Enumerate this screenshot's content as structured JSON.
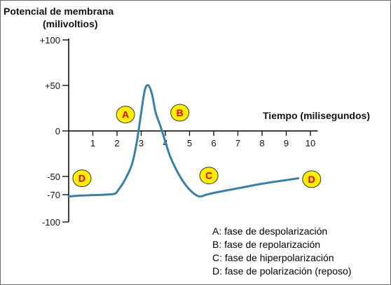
{
  "chart_data": {
    "type": "line",
    "ylabel_line1": "Potencial de membrana",
    "ylabel_line2": "(milivoltios)",
    "xlabel": "Tiempo (milisegundos)",
    "y_ticks": [
      {
        "value": 100,
        "label": "+100"
      },
      {
        "value": 50,
        "label": "+50"
      },
      {
        "value": 0,
        "label": "0"
      },
      {
        "value": -50,
        "label": "-50"
      },
      {
        "value": -70,
        "label": "-70"
      },
      {
        "value": -100,
        "label": "-100"
      }
    ],
    "x_ticks": [
      1,
      2,
      3,
      4,
      5,
      6,
      7,
      8,
      9,
      10
    ],
    "xlim": [
      0,
      10.3
    ],
    "ylim": [
      -100,
      100
    ],
    "grid": false,
    "series": [
      {
        "color": "#3a7fa4",
        "x": [
          0,
          0.5,
          1,
          1.5,
          1.9,
          2.05,
          2.3,
          2.6,
          2.8,
          3.0,
          3.15,
          3.3,
          3.45,
          3.6,
          3.8,
          4.0,
          4.2,
          4.5,
          4.8,
          5.1,
          5.4,
          5.7,
          6.2,
          7,
          8,
          9,
          9.5
        ],
        "y": [
          -72,
          -71,
          -70.5,
          -70,
          -69,
          -65,
          -55,
          -38,
          -15,
          20,
          45,
          50,
          40,
          20,
          5,
          -12,
          -28,
          -45,
          -58,
          -67,
          -72,
          -70,
          -67,
          -63,
          -58,
          -54,
          -52
        ]
      }
    ],
    "annotations": [
      {
        "label": "A",
        "x": 2.35,
        "y": 18
      },
      {
        "label": "B",
        "x": 4.6,
        "y": 20
      },
      {
        "label": "C",
        "x": 5.8,
        "y": -49
      },
      {
        "label": "D",
        "x": 0.55,
        "y": -52
      },
      {
        "label": "D",
        "x": 10.05,
        "y": -53
      }
    ],
    "legend": [
      "A: fase de despolarización",
      "B: fase de repolarización",
      "C: fase de hiperpolarización",
      "D: fase de polarización (reposo)"
    ]
  }
}
